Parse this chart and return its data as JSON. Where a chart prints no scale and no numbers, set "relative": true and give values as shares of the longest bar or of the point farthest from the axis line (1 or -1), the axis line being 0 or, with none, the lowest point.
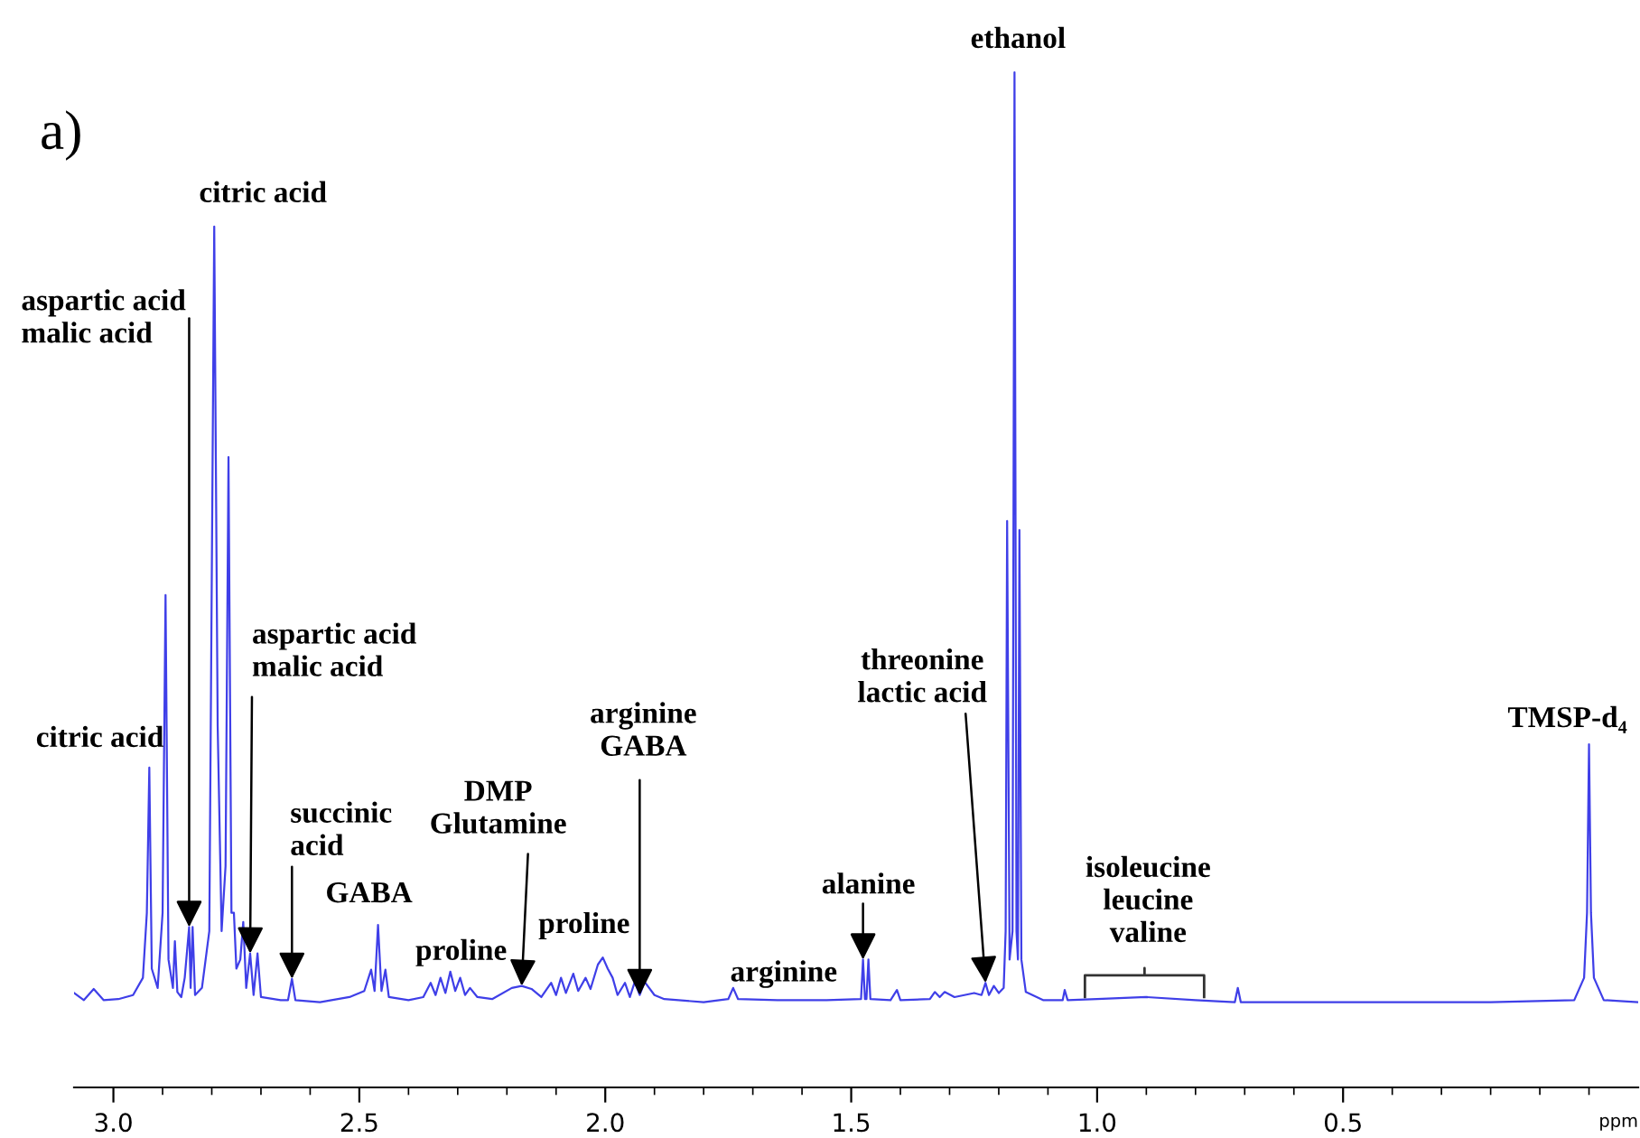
{
  "chart_data": {
    "type": "line",
    "relative": true,
    "xlabel": "ppm",
    "color": "#3f3fe8",
    "line_style": "solid",
    "grid": false,
    "xlim": [
      3.08,
      -0.1
    ],
    "xticks": [
      {
        "value": 3,
        "label": "3.0"
      },
      {
        "value": 2.9,
        "label": null
      },
      {
        "value": 2.8,
        "label": null
      },
      {
        "value": 2.7,
        "label": null
      },
      {
        "value": 2.6,
        "label": null
      },
      2.5,
      {
        "value": 2.4,
        "label": null
      },
      {
        "value": 2.3,
        "label": null
      },
      {
        "value": 2.2,
        "label": null
      },
      {
        "value": 2.1,
        "label": null
      },
      {
        "value": 2,
        "label": "2.0"
      },
      {
        "value": 1.9,
        "label": null
      },
      {
        "value": 1.8,
        "label": null
      },
      {
        "value": 1.7,
        "label": null
      },
      {
        "value": 1.6,
        "label": null
      },
      1.5,
      {
        "value": 1.4,
        "label": null
      },
      {
        "value": 1.3,
        "label": null
      },
      {
        "value": 1.2,
        "label": null
      },
      {
        "value": 1.1,
        "label": null
      },
      {
        "value": 1,
        "label": "1.0"
      },
      {
        "value": 0.9,
        "label": null
      },
      {
        "value": 0.8,
        "label": null
      },
      {
        "value": 0.7,
        "label": null
      },
      {
        "value": 0.6,
        "label": null
      },
      0.5,
      {
        "value": 0.4,
        "label": null
      },
      {
        "value": 0.3,
        "label": null
      },
      {
        "value": 0.2,
        "label": null
      },
      {
        "value": 0.1,
        "label": null
      },
      {
        "value": 0,
        "label": null
      }
    ],
    "x": [
      3.08,
      3.06,
      3.04,
      3.02,
      2.99,
      2.96,
      2.94,
      2.932,
      2.927,
      2.922,
      2.91,
      2.9,
      2.894,
      2.888,
      2.879,
      2.875,
      2.87,
      2.862,
      2.855,
      2.846,
      2.843,
      2.839,
      2.834,
      2.82,
      2.805,
      2.795,
      2.788,
      2.78,
      2.772,
      2.766,
      2.76,
      2.755,
      2.75,
      2.742,
      2.736,
      2.73,
      2.722,
      2.715,
      2.707,
      2.7,
      2.66,
      2.645,
      2.637,
      2.63,
      2.58,
      2.52,
      2.49,
      2.476,
      2.469,
      2.462,
      2.455,
      2.447,
      2.44,
      2.4,
      2.37,
      2.355,
      2.345,
      2.335,
      2.325,
      2.315,
      2.305,
      2.295,
      2.285,
      2.275,
      2.26,
      2.23,
      2.19,
      2.17,
      2.15,
      2.13,
      2.11,
      2.1,
      2.09,
      2.08,
      2.065,
      2.055,
      2.04,
      2.03,
      2.015,
      2.005,
      1.995,
      1.985,
      1.975,
      1.96,
      1.95,
      1.94,
      1.93,
      1.92,
      1.9,
      1.88,
      1.8,
      1.75,
      1.74,
      1.73,
      1.65,
      1.55,
      1.48,
      1.476,
      1.472,
      1.469,
      1.465,
      1.461,
      1.42,
      1.407,
      1.4,
      1.34,
      1.33,
      1.32,
      1.31,
      1.29,
      1.25,
      1.235,
      1.227,
      1.22,
      1.21,
      1.2,
      1.19,
      1.186,
      1.183,
      1.178,
      1.172,
      1.168,
      1.164,
      1.161,
      1.158,
      1.154,
      1.145,
      1.11,
      1.07,
      1.066,
      1.06,
      1.0,
      0.9,
      0.8,
      0.72,
      0.714,
      0.708,
      0.5,
      0.2,
      0.03,
      0.01,
      0.004,
      0.0,
      -0.004,
      -0.01,
      -0.03,
      -0.1
    ],
    "values": [
      0.093,
      0.086,
      0.097,
      0.086,
      0.087,
      0.091,
      0.108,
      0.172,
      0.315,
      0.117,
      0.098,
      0.172,
      0.485,
      0.126,
      0.098,
      0.144,
      0.094,
      0.089,
      0.108,
      0.158,
      0.098,
      0.158,
      0.091,
      0.098,
      0.154,
      0.848,
      0.356,
      0.154,
      0.218,
      0.621,
      0.172,
      0.172,
      0.117,
      0.126,
      0.163,
      0.098,
      0.132,
      0.091,
      0.132,
      0.089,
      0.086,
      0.086,
      0.107,
      0.086,
      0.084,
      0.089,
      0.095,
      0.116,
      0.095,
      0.16,
      0.095,
      0.116,
      0.089,
      0.086,
      0.089,
      0.103,
      0.091,
      0.108,
      0.093,
      0.114,
      0.095,
      0.108,
      0.091,
      0.098,
      0.089,
      0.087,
      0.098,
      0.1,
      0.097,
      0.089,
      0.103,
      0.091,
      0.108,
      0.093,
      0.112,
      0.095,
      0.108,
      0.097,
      0.121,
      0.128,
      0.117,
      0.108,
      0.091,
      0.103,
      0.089,
      0.104,
      0.091,
      0.104,
      0.091,
      0.087,
      0.084,
      0.087,
      0.098,
      0.087,
      0.086,
      0.086,
      0.087,
      0.126,
      0.087,
      0.087,
      0.126,
      0.087,
      0.086,
      0.096,
      0.086,
      0.087,
      0.094,
      0.089,
      0.094,
      0.089,
      0.093,
      0.091,
      0.103,
      0.091,
      0.1,
      0.093,
      0.098,
      0.154,
      0.558,
      0.126,
      0.154,
      1.0,
      0.154,
      0.126,
      0.549,
      0.126,
      0.094,
      0.086,
      0.086,
      0.096,
      0.086,
      0.087,
      0.089,
      0.086,
      0.084,
      0.098,
      0.084,
      0.084,
      0.084,
      0.086,
      0.108,
      0.172,
      0.338,
      0.172,
      0.108,
      0.086,
      0.084
    ],
    "annotations": [
      "a)",
      {
        "text": "citric acid",
        "x": 2.795,
        "y": 0.848
      },
      {
        "text": "aspartic acid\nmalic acid",
        "x": 2.846,
        "y": 0.158
      },
      {
        "text": "citric acid",
        "x": 2.927,
        "y": 0.315
      },
      {
        "text": "aspartic acid\nmalic acid",
        "x": 2.722,
        "y": 0.132
      },
      {
        "text": "succinic\nacid",
        "x": 2.637,
        "y": 0.107
      },
      {
        "text": "GABA",
        "x": 2.462,
        "y": 0.16
      },
      {
        "text": "proline",
        "x": 2.315,
        "y": 0.114
      },
      {
        "text": "DMP\nGlutamine",
        "x": 2.17,
        "y": 0.1
      },
      {
        "text": "proline",
        "x": 2.065,
        "y": 0.112
      },
      {
        "text": "arginine\nGABA",
        "x": 1.93,
        "y": 0.091
      },
      {
        "text": "arginine",
        "x": 1.74,
        "y": 0.098
      },
      {
        "text": "alanine",
        "x": 1.476,
        "y": 0.126
      },
      {
        "text": "threonine\nlactic acid",
        "x": 1.227,
        "y": 0.103
      },
      {
        "text": "isoleucine\nleucine\nvaline",
        "x": 0.9,
        "y": 0.089
      },
      {
        "text": "ethanol",
        "x": 1.168,
        "y": 1.0
      },
      {
        "text": "TMSP-d₄",
        "x": 0.0,
        "y": 0.338
      }
    ]
  }
}
